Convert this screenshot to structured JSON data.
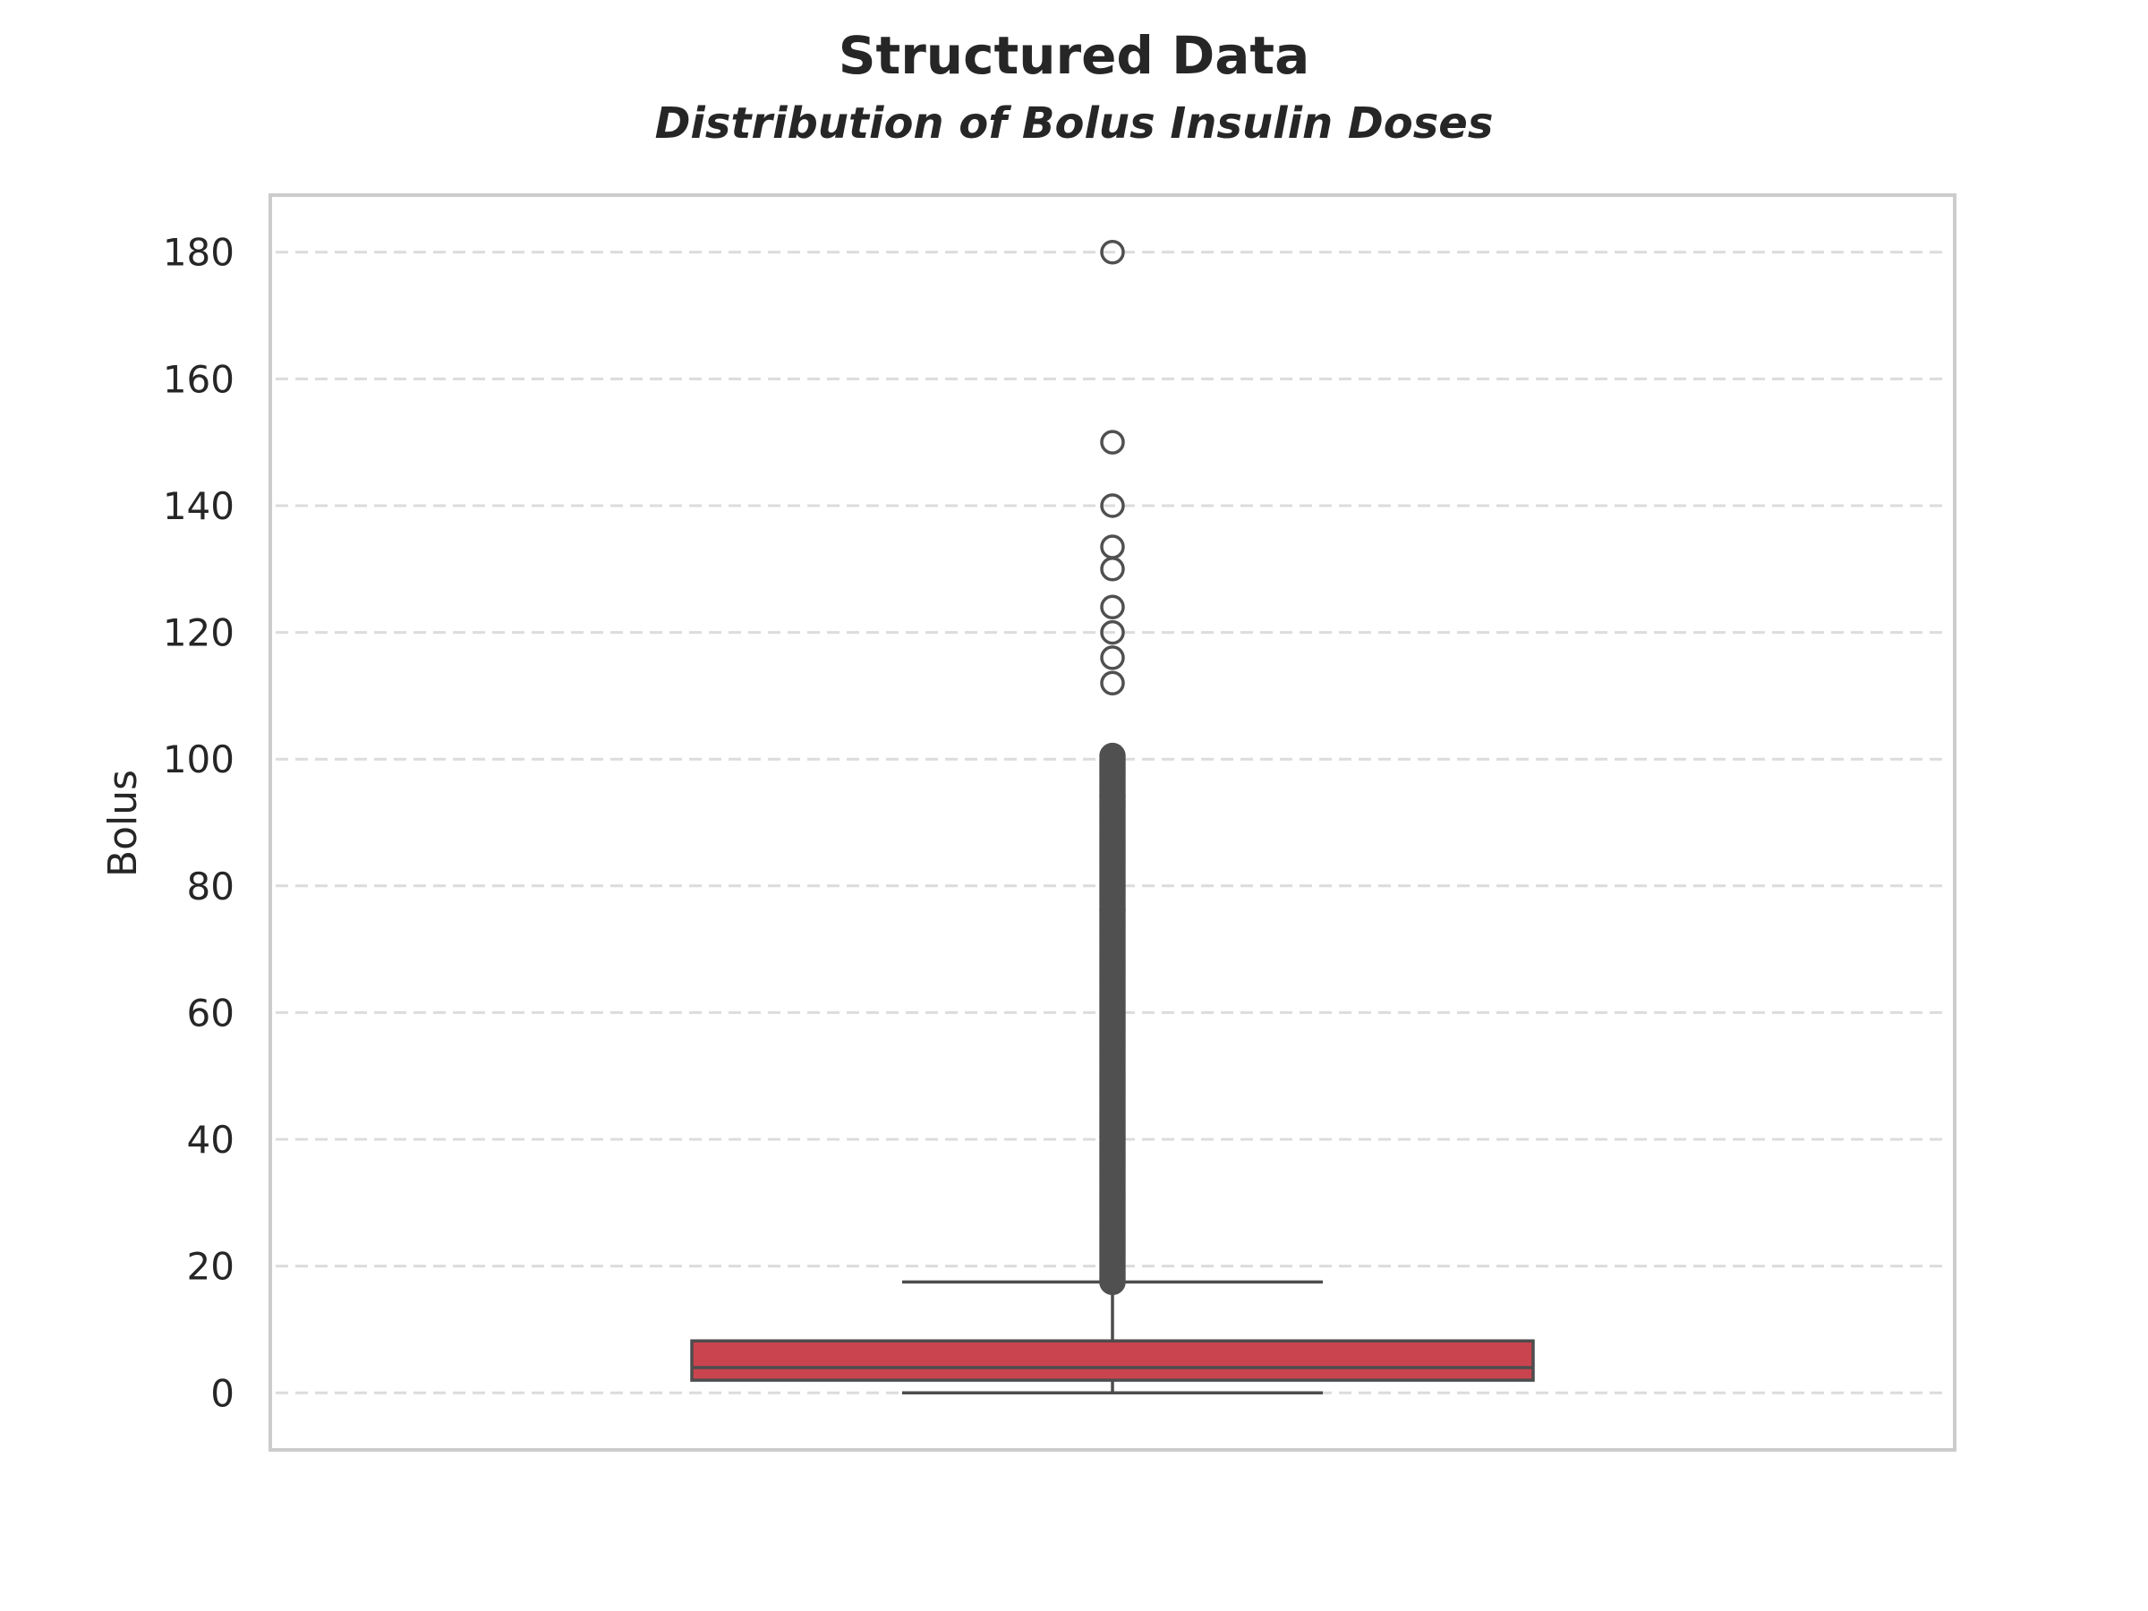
{
  "chart_data": {
    "type": "box",
    "title": "Structured Data",
    "subtitle": "Distribution of Bolus Insulin Doses",
    "xlabel": "",
    "ylabel": "Bolus",
    "ylim": [
      -9,
      189
    ],
    "yticks": [
      0,
      20,
      40,
      60,
      80,
      100,
      120,
      140,
      160,
      180
    ],
    "grid": "horizontal-dashed",
    "box": {
      "min": 0,
      "q1": 2,
      "median": 4,
      "q3": 8.2,
      "whisker_high": 17.5,
      "whisker_low": 0,
      "color": "#c9444f"
    },
    "outlier_range_dense": [
      17.5,
      100.5
    ],
    "outliers": [
      112,
      116,
      120,
      124,
      130,
      133.5,
      140,
      150,
      180
    ]
  }
}
